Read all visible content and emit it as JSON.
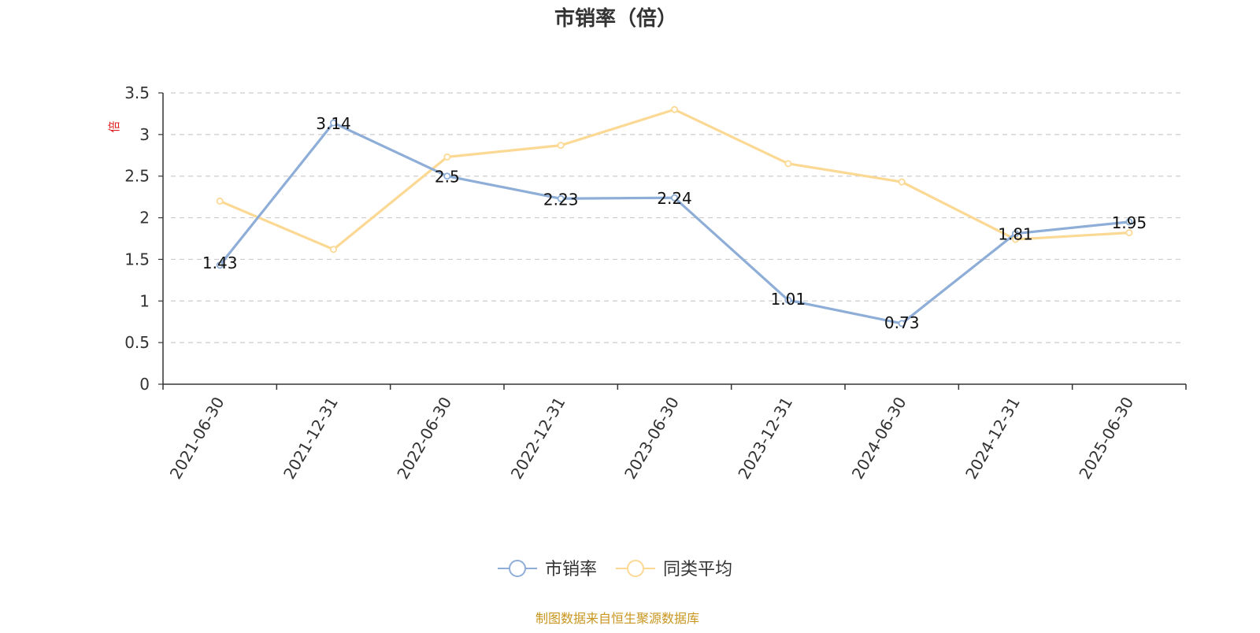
{
  "chart_data": {
    "type": "line",
    "title": "市销率（倍）",
    "ylabel": "倍",
    "xlabel": "",
    "categories": [
      "2021-06-30",
      "2021-12-31",
      "2022-06-30",
      "2022-12-31",
      "2023-06-30",
      "2023-12-31",
      "2024-06-30",
      "2024-12-31",
      "2025-06-30"
    ],
    "ylim": [
      0,
      3.5
    ],
    "yticks": [
      0,
      0.5,
      1,
      1.5,
      2,
      2.5,
      3,
      3.5
    ],
    "grid": true,
    "legend_position": "bottom",
    "series": [
      {
        "name": "市销率",
        "color": "#8eaed8",
        "values": [
          1.43,
          3.14,
          2.5,
          2.23,
          2.24,
          1.01,
          0.73,
          1.81,
          1.95
        ],
        "labels": [
          "1.43",
          "3.14",
          "2.5",
          "2.23",
          "2.24",
          "1.01",
          "0.73",
          "1.81",
          "1.95"
        ]
      },
      {
        "name": "同类平均",
        "color": "#fbd994",
        "values": [
          2.2,
          1.62,
          2.73,
          2.87,
          3.3,
          2.65,
          2.43,
          1.74,
          1.82
        ]
      }
    ],
    "source": "制图数据来自恒生聚源数据库"
  }
}
